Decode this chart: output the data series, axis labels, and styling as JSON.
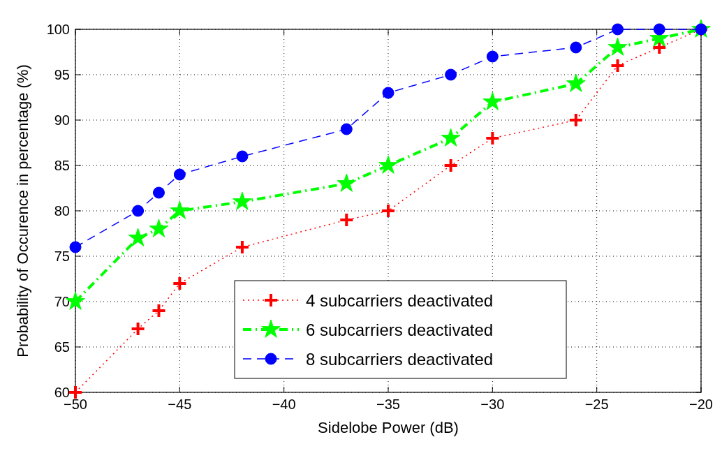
{
  "chart_data": {
    "type": "line",
    "xlabel": "Sidelobe Power (dB)",
    "ylabel": "Probability of Occurence in percentage (%)",
    "x": [
      -50,
      -47,
      -46,
      -45,
      -42,
      -37,
      -35,
      -32,
      -30,
      -26,
      -24,
      -22,
      -20
    ],
    "series": [
      {
        "name": "4 subcarriers deactivated",
        "color": "#ff0000",
        "marker": "cross",
        "line_style": "dotted",
        "values": [
          60,
          67,
          69,
          72,
          76,
          79,
          80,
          85,
          88,
          90,
          96,
          98,
          100
        ]
      },
      {
        "name": "6 subcarriers deactivated",
        "color": "#00ff00",
        "marker": "star",
        "line_style": "dashdot",
        "values": [
          70,
          77,
          78,
          80,
          81,
          83,
          85,
          88,
          92,
          94,
          98,
          99,
          100
        ]
      },
      {
        "name": "8 subcarriers deactivated",
        "color": "#0000ff",
        "marker": "circle",
        "line_style": "dashed",
        "values": [
          76,
          80,
          82,
          84,
          86,
          89,
          93,
          95,
          97,
          98,
          100,
          100,
          100
        ]
      }
    ],
    "xlim": [
      -50,
      -20
    ],
    "xticks": [
      -50,
      -45,
      -40,
      -35,
      -30,
      -25,
      -20
    ],
    "ylim": [
      60,
      100
    ],
    "yticks": [
      60,
      65,
      70,
      75,
      80,
      85,
      90,
      95,
      100
    ],
    "grid": true,
    "legend": "bottom right"
  }
}
